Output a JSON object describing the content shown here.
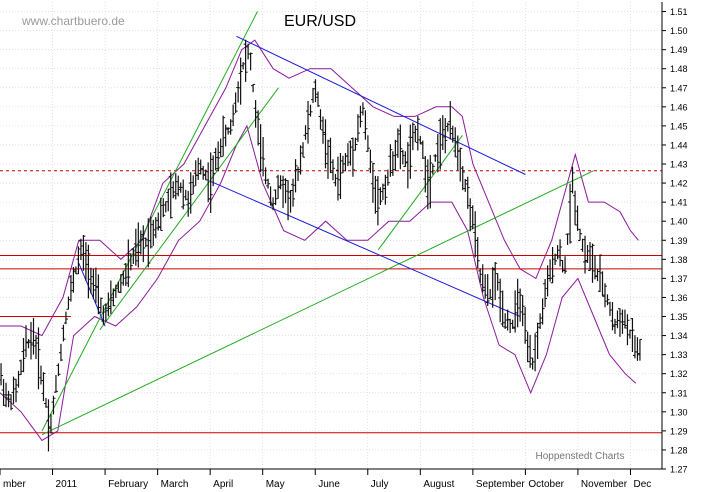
{
  "watermark": "www.chartbuero.de",
  "footer_credit": "Hoppenstedt Charts",
  "chart_data": {
    "type": "ohlc",
    "title": "EUR/USD",
    "y_axis_side": "right",
    "ylim": [
      1.27,
      1.515
    ],
    "y_ticks": [
      1.27,
      1.28,
      1.29,
      1.3,
      1.31,
      1.32,
      1.33,
      1.34,
      1.35,
      1.36,
      1.37,
      1.38,
      1.39,
      1.4,
      1.41,
      1.42,
      1.43,
      1.44,
      1.45,
      1.46,
      1.47,
      1.48,
      1.49,
      1.5,
      1.51
    ],
    "x_labels": [
      "mber",
      "2011",
      "February",
      "March",
      "April",
      "May",
      "June",
      "July",
      "August",
      "September",
      "October",
      "November",
      "Dec"
    ],
    "x_label_positions": [
      0,
      1,
      2,
      3,
      4,
      5,
      6,
      7,
      8,
      9,
      10,
      11,
      12
    ],
    "x_range": [
      0,
      12.6
    ],
    "grid": true,
    "price_path": [
      [
        0.0,
        1.32
      ],
      [
        0.15,
        1.305
      ],
      [
        0.3,
        1.31
      ],
      [
        0.5,
        1.335
      ],
      [
        0.65,
        1.34
      ],
      [
        0.85,
        1.31
      ],
      [
        0.95,
        1.29
      ],
      [
        1.05,
        1.31
      ],
      [
        1.25,
        1.35
      ],
      [
        1.4,
        1.37
      ],
      [
        1.55,
        1.385
      ],
      [
        1.7,
        1.375
      ],
      [
        1.85,
        1.36
      ],
      [
        2.0,
        1.35
      ],
      [
        2.15,
        1.36
      ],
      [
        2.35,
        1.37
      ],
      [
        2.6,
        1.385
      ],
      [
        2.8,
        1.39
      ],
      [
        3.0,
        1.4
      ],
      [
        3.2,
        1.41
      ],
      [
        3.4,
        1.42
      ],
      [
        3.6,
        1.41
      ],
      [
        3.8,
        1.43
      ],
      [
        4.0,
        1.42
      ],
      [
        4.2,
        1.44
      ],
      [
        4.4,
        1.45
      ],
      [
        4.6,
        1.48
      ],
      [
        4.75,
        1.49
      ],
      [
        4.85,
        1.46
      ],
      [
        5.0,
        1.43
      ],
      [
        5.2,
        1.41
      ],
      [
        5.35,
        1.42
      ],
      [
        5.55,
        1.41
      ],
      [
        5.7,
        1.43
      ],
      [
        5.85,
        1.45
      ],
      [
        6.0,
        1.47
      ],
      [
        6.2,
        1.44
      ],
      [
        6.4,
        1.42
      ],
      [
        6.55,
        1.43
      ],
      [
        6.75,
        1.44
      ],
      [
        6.9,
        1.46
      ],
      [
        7.05,
        1.43
      ],
      [
        7.2,
        1.41
      ],
      [
        7.35,
        1.42
      ],
      [
        7.55,
        1.44
      ],
      [
        7.75,
        1.43
      ],
      [
        7.95,
        1.45
      ],
      [
        8.15,
        1.42
      ],
      [
        8.35,
        1.44
      ],
      [
        8.55,
        1.45
      ],
      [
        8.7,
        1.44
      ],
      [
        8.85,
        1.42
      ],
      [
        9.0,
        1.4
      ],
      [
        9.15,
        1.37
      ],
      [
        9.3,
        1.36
      ],
      [
        9.45,
        1.37
      ],
      [
        9.6,
        1.35
      ],
      [
        9.75,
        1.345
      ],
      [
        9.9,
        1.36
      ],
      [
        10.05,
        1.33
      ],
      [
        10.15,
        1.325
      ],
      [
        10.3,
        1.35
      ],
      [
        10.45,
        1.37
      ],
      [
        10.6,
        1.385
      ],
      [
        10.75,
        1.375
      ],
      [
        10.9,
        1.42
      ],
      [
        11.0,
        1.4
      ],
      [
        11.1,
        1.385
      ],
      [
        11.25,
        1.38
      ],
      [
        11.4,
        1.37
      ],
      [
        11.55,
        1.36
      ],
      [
        11.7,
        1.345
      ],
      [
        11.85,
        1.35
      ],
      [
        12.0,
        1.34
      ],
      [
        12.15,
        1.33
      ],
      [
        12.2,
        1.335
      ]
    ],
    "horizontal_lines": [
      {
        "y": 1.4265,
        "color": "#cc0000",
        "style": "dashed"
      },
      {
        "y": 1.382,
        "color": "#cc0000",
        "style": "solid"
      },
      {
        "y": 1.375,
        "color": "#cc0000",
        "style": "solid"
      },
      {
        "y": 1.289,
        "color": "#cc0000",
        "style": "solid"
      }
    ],
    "short_lines": [
      {
        "x1": 0.0,
        "x2": 1.35,
        "y": 1.35,
        "color": "#cc0000"
      }
    ],
    "trend_lines": [
      {
        "x1": 0.8,
        "y1": 1.288,
        "x2": 11.3,
        "y2": 1.4265,
        "color": "#22aa22"
      },
      {
        "x1": 0.8,
        "y1": 1.29,
        "x2": 4.9,
        "y2": 1.51,
        "color": "#22aa22"
      },
      {
        "x1": 1.9,
        "y1": 1.343,
        "x2": 5.3,
        "y2": 1.47,
        "color": "#22aa22"
      },
      {
        "x1": 7.2,
        "y1": 1.385,
        "x2": 8.8,
        "y2": 1.445,
        "color": "#22aa22"
      },
      {
        "x1": 4.5,
        "y1": 1.497,
        "x2": 10.0,
        "y2": 1.4245,
        "color": "#1a1adc"
      },
      {
        "x1": 4.0,
        "y1": 1.421,
        "x2": 9.9,
        "y2": 1.35,
        "color": "#1a1adc"
      },
      {
        "x1": 1.5,
        "y1": 1.378,
        "x2": 2.0,
        "y2": 1.345,
        "color": "#1a1adc"
      }
    ],
    "bollinger_upper": [
      [
        0.0,
        1.345
      ],
      [
        0.4,
        1.345
      ],
      [
        0.8,
        1.34
      ],
      [
        1.2,
        1.36
      ],
      [
        1.5,
        1.39
      ],
      [
        1.9,
        1.39
      ],
      [
        2.3,
        1.38
      ],
      [
        2.7,
        1.39
      ],
      [
        3.1,
        1.42
      ],
      [
        3.5,
        1.43
      ],
      [
        3.9,
        1.45
      ],
      [
        4.3,
        1.47
      ],
      [
        4.6,
        1.49
      ],
      [
        4.85,
        1.495
      ],
      [
        5.2,
        1.48
      ],
      [
        5.5,
        1.475
      ],
      [
        5.9,
        1.48
      ],
      [
        6.3,
        1.48
      ],
      [
        6.7,
        1.47
      ],
      [
        7.1,
        1.46
      ],
      [
        7.5,
        1.455
      ],
      [
        7.9,
        1.455
      ],
      [
        8.3,
        1.46
      ],
      [
        8.6,
        1.46
      ],
      [
        8.8,
        1.455
      ],
      [
        9.0,
        1.43
      ],
      [
        9.3,
        1.41
      ],
      [
        9.6,
        1.39
      ],
      [
        9.9,
        1.375
      ],
      [
        10.2,
        1.37
      ],
      [
        10.5,
        1.39
      ],
      [
        10.8,
        1.42
      ],
      [
        10.95,
        1.435
      ],
      [
        11.2,
        1.41
      ],
      [
        11.5,
        1.41
      ],
      [
        11.8,
        1.405
      ],
      [
        12.0,
        1.395
      ],
      [
        12.15,
        1.39
      ]
    ],
    "bollinger_lower": [
      [
        0.0,
        1.31
      ],
      [
        0.4,
        1.3
      ],
      [
        0.8,
        1.285
      ],
      [
        1.1,
        1.29
      ],
      [
        1.4,
        1.34
      ],
      [
        1.8,
        1.35
      ],
      [
        2.2,
        1.345
      ],
      [
        2.6,
        1.355
      ],
      [
        3.0,
        1.37
      ],
      [
        3.4,
        1.39
      ],
      [
        3.8,
        1.4
      ],
      [
        4.2,
        1.42
      ],
      [
        4.5,
        1.44
      ],
      [
        4.7,
        1.45
      ],
      [
        5.0,
        1.42
      ],
      [
        5.4,
        1.395
      ],
      [
        5.8,
        1.39
      ],
      [
        6.2,
        1.4
      ],
      [
        6.6,
        1.39
      ],
      [
        7.0,
        1.39
      ],
      [
        7.4,
        1.4
      ],
      [
        7.8,
        1.4
      ],
      [
        8.2,
        1.41
      ],
      [
        8.6,
        1.41
      ],
      [
        8.9,
        1.395
      ],
      [
        9.2,
        1.36
      ],
      [
        9.5,
        1.335
      ],
      [
        9.8,
        1.33
      ],
      [
        10.1,
        1.31
      ],
      [
        10.4,
        1.33
      ],
      [
        10.7,
        1.36
      ],
      [
        11.0,
        1.37
      ],
      [
        11.3,
        1.35
      ],
      [
        11.6,
        1.33
      ],
      [
        11.9,
        1.32
      ],
      [
        12.1,
        1.315
      ]
    ],
    "colors": {
      "bars": "#111111",
      "bollinger": "#8b1a9b",
      "trend_green": "#22aa22",
      "trend_blue": "#1a1adc",
      "support_red": "#cc0000",
      "grid": "#cfcfcf",
      "frame": "#000000",
      "text": "#000000",
      "muted_text": "#777777"
    }
  }
}
